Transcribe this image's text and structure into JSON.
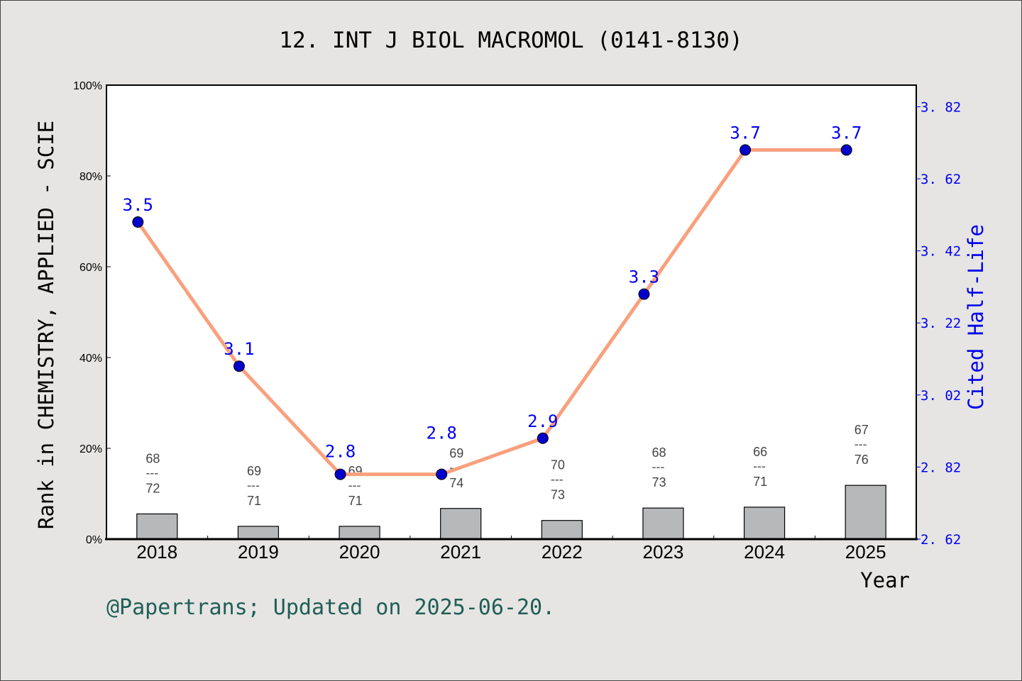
{
  "chart_data": {
    "type": "bar+line",
    "title": "12. INT J BIOL MACROMOL (0141-8130)",
    "xlabel": "Year",
    "ylabel_left": "Rank in CHEMISTRY, APPLIED - SCIE",
    "ylabel_right": "Cited Half-Life",
    "categories": [
      "2018",
      "2019",
      "2020",
      "2021",
      "2022",
      "2023",
      "2024",
      "2025"
    ],
    "left_axis": {
      "ylim": [
        0,
        100
      ],
      "ticks": [
        "0%",
        "20%",
        "40%",
        "60%",
        "80%",
        "100%"
      ],
      "tick_values": [
        0,
        20,
        40,
        60,
        80,
        100
      ]
    },
    "right_axis": {
      "ylim": [
        2.62,
        3.88
      ],
      "ticks": [
        "2.62",
        "2.82",
        "3.02",
        "3.22",
        "3.42",
        "3.62",
        "3.82"
      ],
      "tick_values": [
        2.62,
        2.82,
        3.02,
        3.22,
        3.42,
        3.62,
        3.82
      ]
    },
    "bars": {
      "ranks": [
        68,
        69,
        69,
        69,
        70,
        68,
        66,
        67
      ],
      "totals": [
        72,
        71,
        71,
        74,
        73,
        73,
        71,
        76
      ],
      "values_percent": [
        5.6,
        2.8,
        2.8,
        6.8,
        4.1,
        6.8,
        7.0,
        11.8
      ],
      "color": "#b7b8ba"
    },
    "line": {
      "values": [
        3.5,
        3.1,
        2.8,
        2.8,
        2.9,
        3.3,
        3.7,
        3.7
      ],
      "labels": [
        "3.5",
        "3.1",
        "2.8",
        "2.8",
        "2.9",
        "3.3",
        "3.7",
        "3.7"
      ],
      "line_color": "#f9a07d",
      "marker_color": "#0000cc",
      "label_color": "#0000ee"
    },
    "grid": false,
    "legend": "none"
  },
  "footer": "@Papertrans; Updated on 2025-06-20."
}
